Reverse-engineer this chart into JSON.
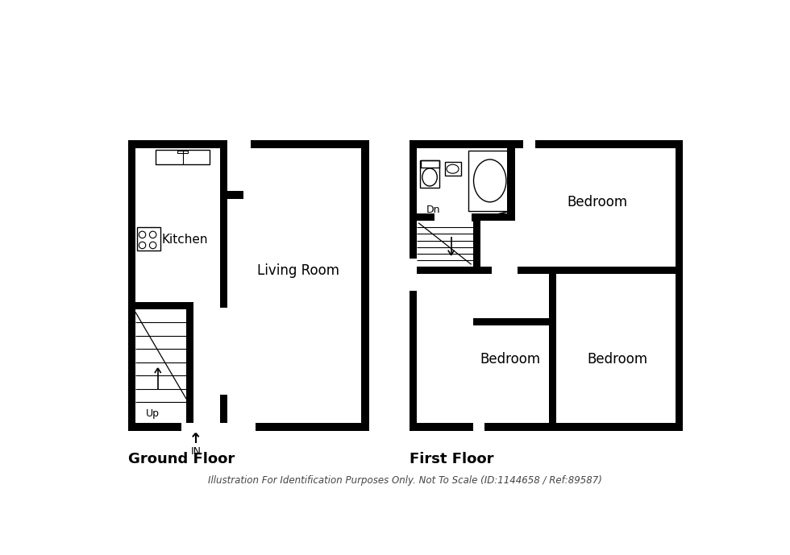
{
  "background_color": "#ffffff",
  "wall_color": "#000000",
  "footer": "Illustration For Identification Purposes Only. Not To Scale (ID:1144658 / Ref:89587)",
  "ground_floor_label": "Ground Floor",
  "first_floor_label": "First Floor",
  "living_room_label": "Living Room",
  "kitchen_label": "Kitchen",
  "bedroom1_label": "Bedroom",
  "bedroom2_label": "Bedroom",
  "bedroom3_label": "Bedroom",
  "up_label": "Up",
  "dn_label": "Dn",
  "in_label": "IN",
  "wall_thickness": 12
}
